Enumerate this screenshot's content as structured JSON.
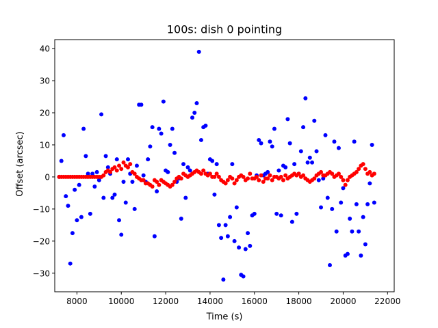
{
  "chart_data": {
    "type": "scatter",
    "title": "100s: dish 0 pointing",
    "xlabel": "Time (s)",
    "ylabel": "Offset (arcsec)",
    "xlim": [
      7000,
      22300
    ],
    "ylim": [
      -35.8,
      42.8
    ],
    "xticks": [
      8000,
      10000,
      12000,
      14000,
      16000,
      18000,
      20000,
      22000
    ],
    "yticks": [
      -30,
      -20,
      -10,
      0,
      10,
      20,
      30,
      40
    ],
    "grid": false,
    "series": [
      {
        "color": "#0000ff",
        "points": [
          [
            7200,
            0
          ],
          [
            7300,
            5
          ],
          [
            7400,
            13
          ],
          [
            7500,
            -6
          ],
          [
            7600,
            -9
          ],
          [
            7700,
            -27
          ],
          [
            7800,
            -17.5
          ],
          [
            7900,
            -4
          ],
          [
            8000,
            -13.5
          ],
          [
            8100,
            -2.5
          ],
          [
            8200,
            -12.5
          ],
          [
            8300,
            15
          ],
          [
            8400,
            6.5
          ],
          [
            8500,
            1
          ],
          [
            8600,
            -11.5
          ],
          [
            8700,
            1
          ],
          [
            8800,
            -3
          ],
          [
            8900,
            1.5
          ],
          [
            9000,
            -1
          ],
          [
            9100,
            19.5
          ],
          [
            9200,
            -6.5
          ],
          [
            9300,
            6.5
          ],
          [
            9400,
            3
          ],
          [
            9500,
            1
          ],
          [
            9600,
            -6.5
          ],
          [
            9700,
            -5.5
          ],
          [
            9800,
            5.5
          ],
          [
            9900,
            -13.5
          ],
          [
            10000,
            -18
          ],
          [
            10100,
            -1.5
          ],
          [
            10200,
            -8
          ],
          [
            10300,
            5.5
          ],
          [
            10400,
            1
          ],
          [
            10500,
            -1.5
          ],
          [
            10600,
            -10
          ],
          [
            10700,
            3.5
          ],
          [
            10800,
            22.5
          ],
          [
            10900,
            22.5
          ],
          [
            11000,
            0.5
          ],
          [
            11100,
            -1.5
          ],
          [
            11200,
            5.5
          ],
          [
            11300,
            9.5
          ],
          [
            11400,
            15.5
          ],
          [
            11500,
            -18.5
          ],
          [
            11600,
            -4.5
          ],
          [
            11700,
            15
          ],
          [
            11800,
            13.5
          ],
          [
            11900,
            23.5
          ],
          [
            12000,
            2
          ],
          [
            12100,
            1.5
          ],
          [
            12200,
            10
          ],
          [
            12300,
            15
          ],
          [
            12400,
            7.5
          ],
          [
            12500,
            -1.5
          ],
          [
            12600,
            -0.5
          ],
          [
            12700,
            -13
          ],
          [
            12800,
            4
          ],
          [
            12900,
            -6.5
          ],
          [
            13000,
            3
          ],
          [
            13100,
            2
          ],
          [
            13200,
            18.5
          ],
          [
            13300,
            20
          ],
          [
            13400,
            23
          ],
          [
            13500,
            39
          ],
          [
            13600,
            11.5
          ],
          [
            13700,
            15.5
          ],
          [
            13800,
            16
          ],
          [
            13900,
            1
          ],
          [
            14000,
            5.5
          ],
          [
            14100,
            5
          ],
          [
            14200,
            -5.5
          ],
          [
            14300,
            4
          ],
          [
            14400,
            -15
          ],
          [
            14500,
            -19
          ],
          [
            14600,
            -32
          ],
          [
            14700,
            -15
          ],
          [
            14800,
            -18.5
          ],
          [
            14900,
            -12.5
          ],
          [
            15000,
            4
          ],
          [
            15100,
            -20
          ],
          [
            15200,
            -9.5
          ],
          [
            15300,
            -22
          ],
          [
            15400,
            -30.5
          ],
          [
            15500,
            -31
          ],
          [
            15600,
            -22.5
          ],
          [
            15700,
            -17.5
          ],
          [
            15800,
            -21.5
          ],
          [
            15900,
            -12
          ],
          [
            16000,
            -11.5
          ],
          [
            16100,
            0.5
          ],
          [
            16200,
            11.5
          ],
          [
            16300,
            10.5
          ],
          [
            16400,
            0.5
          ],
          [
            16500,
            1
          ],
          [
            16600,
            1.5
          ],
          [
            16700,
            11
          ],
          [
            16800,
            9.5
          ],
          [
            16900,
            15
          ],
          [
            17000,
            -11.5
          ],
          [
            17100,
            2
          ],
          [
            17200,
            -12
          ],
          [
            17300,
            3.5
          ],
          [
            17400,
            3
          ],
          [
            17500,
            18
          ],
          [
            17600,
            10.5
          ],
          [
            17700,
            -14
          ],
          [
            17800,
            4
          ],
          [
            17900,
            -11.5
          ],
          [
            18000,
            1
          ],
          [
            18100,
            8
          ],
          [
            18200,
            15.5
          ],
          [
            18300,
            24.5
          ],
          [
            18400,
            4.5
          ],
          [
            18500,
            6
          ],
          [
            18600,
            4.5
          ],
          [
            18700,
            17.5
          ],
          [
            18800,
            8
          ],
          [
            18900,
            -1
          ],
          [
            19000,
            -9.5
          ],
          [
            19100,
            -0.5
          ],
          [
            19200,
            13
          ],
          [
            19300,
            -6.5
          ],
          [
            19400,
            -27.5
          ],
          [
            19500,
            -10
          ],
          [
            19600,
            11
          ],
          [
            19700,
            -17
          ],
          [
            19800,
            9
          ],
          [
            19900,
            -8
          ],
          [
            20000,
            -3.5
          ],
          [
            20100,
            -24.5
          ],
          [
            20200,
            -24
          ],
          [
            20300,
            -13
          ],
          [
            20400,
            -17
          ],
          [
            20500,
            11
          ],
          [
            20600,
            -8.5
          ],
          [
            20700,
            -17
          ],
          [
            20800,
            -24.5
          ],
          [
            20900,
            -12.5
          ],
          [
            21000,
            -21
          ],
          [
            21100,
            -8.5
          ],
          [
            21200,
            -2
          ],
          [
            21300,
            10
          ],
          [
            21400,
            -8
          ]
        ]
      },
      {
        "color": "#ff0000",
        "points": [
          [
            7200,
            0
          ],
          [
            7300,
            0
          ],
          [
            7400,
            0
          ],
          [
            7500,
            0
          ],
          [
            7600,
            0
          ],
          [
            7700,
            0
          ],
          [
            7800,
            0
          ],
          [
            7900,
            0
          ],
          [
            8000,
            0
          ],
          [
            8100,
            0
          ],
          [
            8200,
            0
          ],
          [
            8300,
            0
          ],
          [
            8400,
            0
          ],
          [
            8500,
            0
          ],
          [
            8600,
            0
          ],
          [
            8700,
            0
          ],
          [
            8800,
            0
          ],
          [
            8900,
            0
          ],
          [
            9000,
            0
          ],
          [
            9100,
            0
          ],
          [
            9200,
            0.5
          ],
          [
            9300,
            1.5
          ],
          [
            9400,
            2
          ],
          [
            9500,
            1.5
          ],
          [
            9600,
            2.5
          ],
          [
            9700,
            3
          ],
          [
            9800,
            2
          ],
          [
            9900,
            3.5
          ],
          [
            10000,
            2.5
          ],
          [
            10100,
            4.5
          ],
          [
            10200,
            3.5
          ],
          [
            10300,
            3
          ],
          [
            10400,
            4
          ],
          [
            10500,
            1.5
          ],
          [
            10600,
            1
          ],
          [
            10700,
            0
          ],
          [
            10800,
            -0.5
          ],
          [
            10900,
            -1
          ],
          [
            11000,
            -1
          ],
          [
            11100,
            -2
          ],
          [
            11200,
            -2
          ],
          [
            11300,
            -2.5
          ],
          [
            11400,
            -3
          ],
          [
            11500,
            -1
          ],
          [
            11600,
            -1.5
          ],
          [
            11700,
            -2.5
          ],
          [
            11800,
            -1
          ],
          [
            11900,
            -1.5
          ],
          [
            12000,
            -2
          ],
          [
            12100,
            -2.5
          ],
          [
            12200,
            -3
          ],
          [
            12300,
            -2.5
          ],
          [
            12400,
            -1.5
          ],
          [
            12500,
            -0.5
          ],
          [
            12600,
            0
          ],
          [
            12700,
            -0.5
          ],
          [
            12800,
            1
          ],
          [
            12900,
            0.5
          ],
          [
            13000,
            0
          ],
          [
            13100,
            0.5
          ],
          [
            13200,
            1
          ],
          [
            13300,
            1.5
          ],
          [
            13400,
            2
          ],
          [
            13500,
            1.5
          ],
          [
            13600,
            1
          ],
          [
            13700,
            2
          ],
          [
            13800,
            1
          ],
          [
            13900,
            0.5
          ],
          [
            14000,
            1
          ],
          [
            14100,
            0
          ],
          [
            14200,
            0
          ],
          [
            14300,
            1
          ],
          [
            14400,
            0
          ],
          [
            14500,
            -1
          ],
          [
            14600,
            -1.5
          ],
          [
            14700,
            -2
          ],
          [
            14800,
            -1
          ],
          [
            14900,
            0
          ],
          [
            15000,
            -0.5
          ],
          [
            15100,
            -2
          ],
          [
            15200,
            -1
          ],
          [
            15300,
            0
          ],
          [
            15400,
            0.5
          ],
          [
            15500,
            0
          ],
          [
            15600,
            -1
          ],
          [
            15700,
            -0.5
          ],
          [
            15800,
            1
          ],
          [
            15900,
            -0.5
          ],
          [
            16000,
            -0.5
          ],
          [
            16100,
            0
          ],
          [
            16200,
            -1
          ],
          [
            16300,
            0.5
          ],
          [
            16400,
            -1.5
          ],
          [
            16500,
            -0.5
          ],
          [
            16600,
            -0.5
          ],
          [
            16700,
            0.5
          ],
          [
            16800,
            -1
          ],
          [
            16900,
            0
          ],
          [
            17000,
            0
          ],
          [
            17100,
            -0.5
          ],
          [
            17200,
            0
          ],
          [
            17300,
            -1
          ],
          [
            17400,
            0.5
          ],
          [
            17500,
            -0.5
          ],
          [
            17600,
            0
          ],
          [
            17700,
            0.5
          ],
          [
            17800,
            1
          ],
          [
            17900,
            0.5
          ],
          [
            18000,
            1
          ],
          [
            18100,
            0
          ],
          [
            18200,
            0.5
          ],
          [
            18300,
            -0.5
          ],
          [
            18400,
            -1
          ],
          [
            18500,
            -1.5
          ],
          [
            18600,
            -1
          ],
          [
            18700,
            -0.5
          ],
          [
            18800,
            0.5
          ],
          [
            18900,
            1
          ],
          [
            19000,
            1.5
          ],
          [
            19100,
            0.5
          ],
          [
            19200,
            0.5
          ],
          [
            19300,
            1
          ],
          [
            19400,
            1.5
          ],
          [
            19500,
            1
          ],
          [
            19600,
            0
          ],
          [
            19700,
            0.5
          ],
          [
            19800,
            1
          ],
          [
            19900,
            0
          ],
          [
            20000,
            -1
          ],
          [
            20100,
            -2.5
          ],
          [
            20200,
            -1
          ],
          [
            20300,
            0
          ],
          [
            20400,
            0.5
          ],
          [
            20500,
            1
          ],
          [
            20600,
            1.5
          ],
          [
            20700,
            2.5
          ],
          [
            20800,
            3.5
          ],
          [
            20900,
            4
          ],
          [
            21000,
            2.5
          ],
          [
            21100,
            1
          ],
          [
            21200,
            1.5
          ],
          [
            21300,
            0.5
          ],
          [
            21400,
            1
          ]
        ]
      }
    ]
  }
}
